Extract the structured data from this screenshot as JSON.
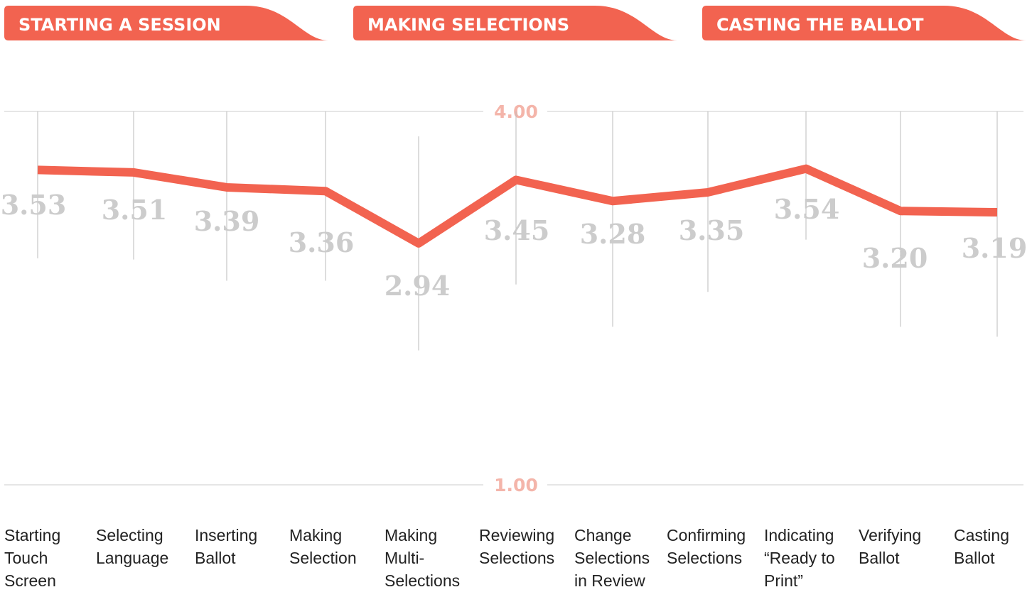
{
  "chart_data": {
    "type": "line",
    "sections": [
      "STARTING A SESSION",
      "MAKING SELECTIONS",
      "CASTING THE BALLOT"
    ],
    "categories": [
      "Starting Touch Screen",
      "Selecting Language",
      "Inserting Ballot",
      "Making Selection",
      "Making Multi-Selections",
      "Reviewing Selections",
      "Change Selections in Review",
      "Confirming Selections",
      "Indicating “Ready to Print”",
      "Verifying Ballot",
      "Casting Ballot"
    ],
    "series": [
      {
        "color": "#f26350",
        "values": [
          3.53,
          3.51,
          3.39,
          3.36,
          2.94,
          3.45,
          3.28,
          3.35,
          3.54,
          3.2,
          3.19
        ],
        "value_labels": [
          "3.53",
          "3.51",
          "3.39",
          "3.36",
          "2.94",
          "3.45",
          "3.28",
          "3.35",
          "3.54",
          "3.20",
          "3.19"
        ],
        "errors": [
          0.71,
          0.7,
          0.75,
          0.72,
          0.86,
          0.84,
          1.01,
          0.8,
          0.57,
          0.93,
          1.0
        ]
      }
    ],
    "ylim": [
      1,
      4
    ],
    "yticks": [
      {
        "value": 1,
        "label": "1.00"
      },
      {
        "value": 4,
        "label": "4.00"
      }
    ],
    "grid": true
  }
}
